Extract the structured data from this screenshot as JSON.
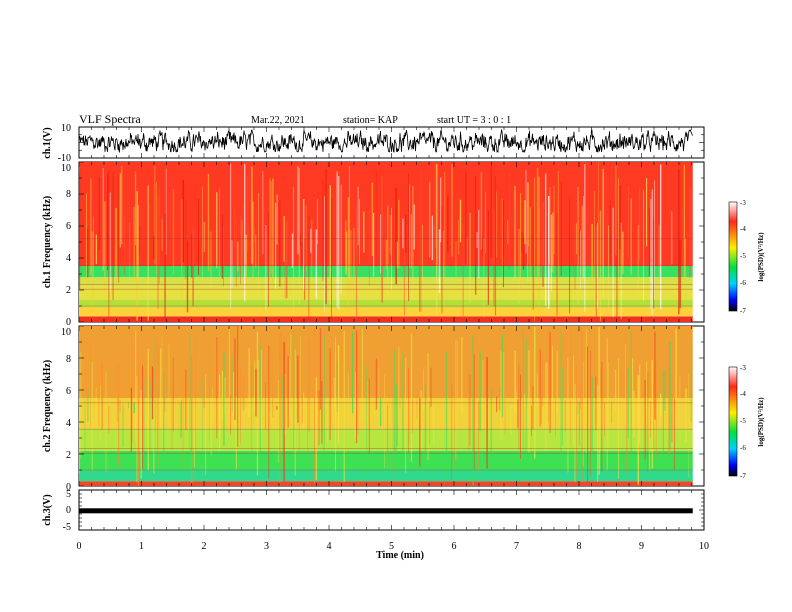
{
  "header": {
    "title": "VLF Spectra",
    "date": "Mar.22, 2021",
    "station": "station= KAP",
    "start": "start UT =  3 : 0 : 1"
  },
  "chart_data": [
    {
      "type": "line",
      "name": "ch1-waveform",
      "ylabel": "ch.1(V)",
      "ylim": [
        -10,
        10
      ],
      "yticks": [
        "10",
        "-10"
      ],
      "xlim": [
        0,
        10
      ],
      "data_end": 9.82,
      "amplitude_range": [
        -6,
        8
      ]
    },
    {
      "type": "heatmap",
      "name": "ch1-spectrogram",
      "ylabel": "ch.1 Frequency (kHz)",
      "ylim": [
        0,
        10
      ],
      "yticks": [
        "0",
        "2",
        "4",
        "6",
        "8",
        "10"
      ],
      "xlim": [
        0,
        10
      ],
      "data_end": 9.82,
      "bands": [
        {
          "from": 0.0,
          "to": 0.35,
          "color": "#f03020"
        },
        {
          "from": 0.35,
          "to": 0.9,
          "color": "#ffd23c"
        },
        {
          "from": 0.9,
          "to": 1.4,
          "color": "#b5e03a"
        },
        {
          "from": 1.4,
          "to": 2.2,
          "color": "#e6e040"
        },
        {
          "from": 2.2,
          "to": 2.8,
          "color": "#d8e048"
        },
        {
          "from": 2.8,
          "to": 3.5,
          "color": "#36e060"
        },
        {
          "from": 3.5,
          "to": 10.0,
          "color": "#ff3a22"
        }
      ]
    },
    {
      "type": "heatmap",
      "name": "ch2-spectrogram",
      "ylabel": "ch.2 Frequency (kHz)",
      "ylim": [
        0,
        10
      ],
      "yticks": [
        "0",
        "2",
        "4",
        "6",
        "8",
        "10"
      ],
      "xlim": [
        0,
        10
      ],
      "data_end": 9.82,
      "bands": [
        {
          "from": 0.0,
          "to": 0.3,
          "color": "#e84a2c"
        },
        {
          "from": 0.3,
          "to": 1.0,
          "color": "#31d98a"
        },
        {
          "from": 1.0,
          "to": 2.2,
          "color": "#3ee054"
        },
        {
          "from": 2.2,
          "to": 3.6,
          "color": "#b8e640"
        },
        {
          "from": 3.6,
          "to": 5.5,
          "color": "#f2d23a"
        },
        {
          "from": 5.5,
          "to": 10.0,
          "color": "#f0a032"
        }
      ]
    },
    {
      "type": "line",
      "name": "ch3-waveform",
      "ylabel": "ch.3(V)",
      "ylim": [
        -5,
        5
      ],
      "yticks": [
        "5",
        "0",
        "-5"
      ],
      "xlim": [
        0,
        10
      ],
      "data_end": 9.82,
      "level": -0.2,
      "xlabel": "Time  (min)",
      "xticks": [
        "0",
        "1",
        "2",
        "3",
        "4",
        "5",
        "6",
        "7",
        "8",
        "9",
        "10"
      ]
    }
  ],
  "colorbar": {
    "label": "log(PSD)(V²/Hz)",
    "ticks": [
      "-3",
      "-4",
      "-5",
      "-6",
      "-7"
    ],
    "range": [
      -7,
      -3
    ],
    "stops": [
      "#ffffff",
      "#ff2a1a",
      "#ffee00",
      "#00e040",
      "#00d0ff",
      "#0000ff",
      "#000000"
    ]
  }
}
